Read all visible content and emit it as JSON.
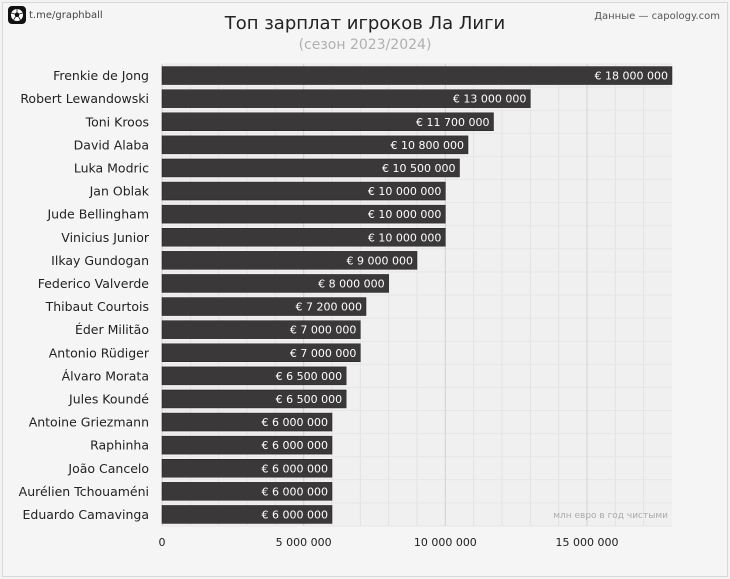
{
  "brand": {
    "text": "t.me/graphball",
    "icon": "football-icon"
  },
  "source": "Данные — capology.com",
  "chart_data": {
    "type": "bar",
    "orientation": "horizontal",
    "title": "Топ зарплат игроков Ла Лиги",
    "subtitle": "(сезон 2023/2024)",
    "unit_note": "млн евро в год чистыми",
    "xlim": [
      0,
      18000000
    ],
    "xticks": [
      0,
      5000000,
      10000000,
      15000000
    ],
    "xtick_labels": [
      "0",
      "5 000 000",
      "10 000 000",
      "15 000 000"
    ],
    "grid": true,
    "bar_color": "#3a3838",
    "categories": [
      "Frenkie de Jong",
      "Robert Lewandowski",
      "Toni Kroos",
      "David Alaba",
      "Luka Modric",
      "Jan Oblak",
      "Jude Bellingham",
      "Vinicius Junior",
      "Ilkay Gundogan",
      "Federico Valverde",
      "Thibaut Courtois",
      "Éder Militão",
      "Antonio Rüdiger",
      "Álvaro Morata",
      "Jules Koundé",
      "Antoine Griezmann",
      "Raphinha",
      "João Cancelo",
      "Aurélien Tchouaméni",
      "Eduardo Camavinga"
    ],
    "values": [
      18000000,
      13000000,
      11700000,
      10800000,
      10500000,
      10000000,
      10000000,
      10000000,
      9000000,
      8000000,
      7200000,
      7000000,
      7000000,
      6500000,
      6500000,
      6000000,
      6000000,
      6000000,
      6000000,
      6000000
    ],
    "value_labels": [
      "€ 18 000 000",
      "€ 13 000 000",
      "€ 11 700 000",
      "€ 10 800 000",
      "€ 10 500 000",
      "€ 10 000 000",
      "€ 10 000 000",
      "€ 10 000 000",
      "€ 9 000 000",
      "€ 8 000 000",
      "€ 7 200 000",
      "€ 7 000 000",
      "€ 7 000 000",
      "€ 6 500 000",
      "€ 6 500 000",
      "€ 6 000 000",
      "€ 6 000 000",
      "€ 6 000 000",
      "€ 6 000 000",
      "€ 6 000 000"
    ]
  }
}
